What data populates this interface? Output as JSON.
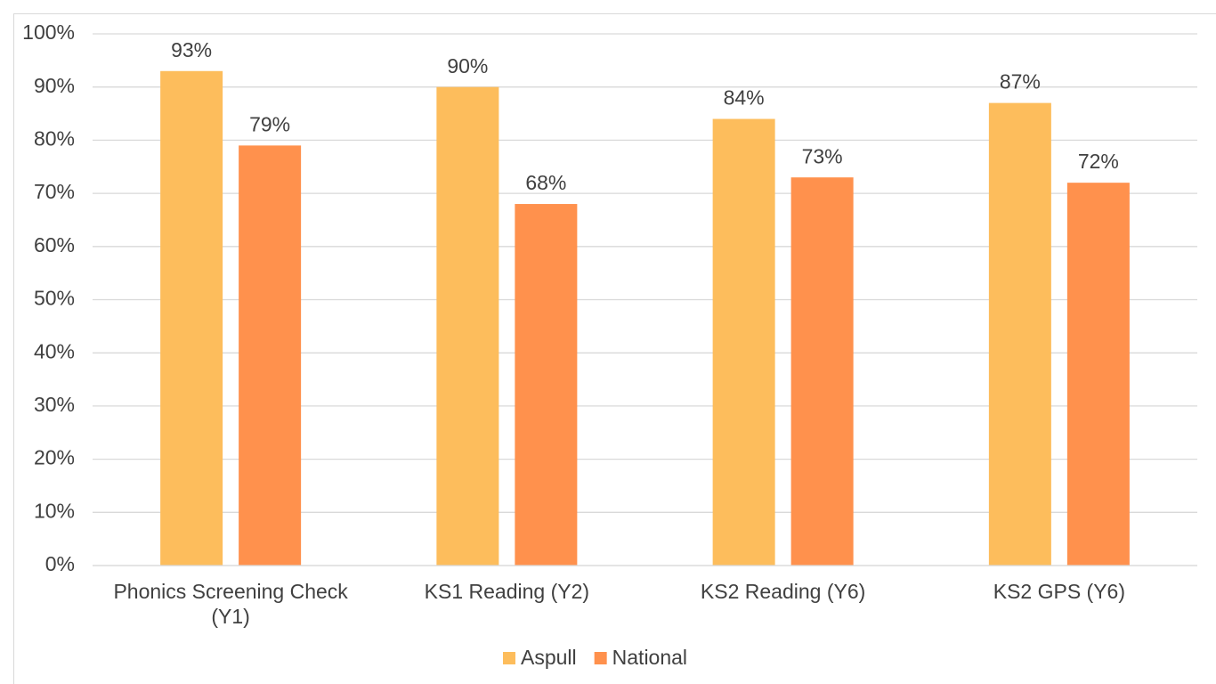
{
  "chart_data": {
    "type": "bar",
    "categories": [
      "Phonics Screening Check (Y1)",
      "KS1 Reading (Y2)",
      "KS2 Reading (Y6)",
      "KS2 GPS (Y6)"
    ],
    "series": [
      {
        "name": "Aspull",
        "color": "#fdbd5c",
        "values": [
          93,
          90,
          84,
          87
        ],
        "value_labels": [
          "93%",
          "90%",
          "84%",
          "87%"
        ]
      },
      {
        "name": "National",
        "color": "#ff914d",
        "values": [
          79,
          68,
          73,
          72
        ],
        "value_labels": [
          "79%",
          "68%",
          "73%",
          "72%"
        ]
      }
    ],
    "ylim": [
      0,
      100
    ],
    "yticks": [
      {
        "value": 0,
        "label": "0%"
      },
      {
        "value": 10,
        "label": "10%"
      },
      {
        "value": 20,
        "label": "20%"
      },
      {
        "value": 30,
        "label": "30%"
      },
      {
        "value": 40,
        "label": "40%"
      },
      {
        "value": 50,
        "label": "50%"
      },
      {
        "value": 60,
        "label": "60%"
      },
      {
        "value": 70,
        "label": "70%"
      },
      {
        "value": 80,
        "label": "80%"
      },
      {
        "value": 90,
        "label": "90%"
      },
      {
        "value": 100,
        "label": "100%"
      }
    ],
    "grid": true,
    "legend": "bottom"
  }
}
